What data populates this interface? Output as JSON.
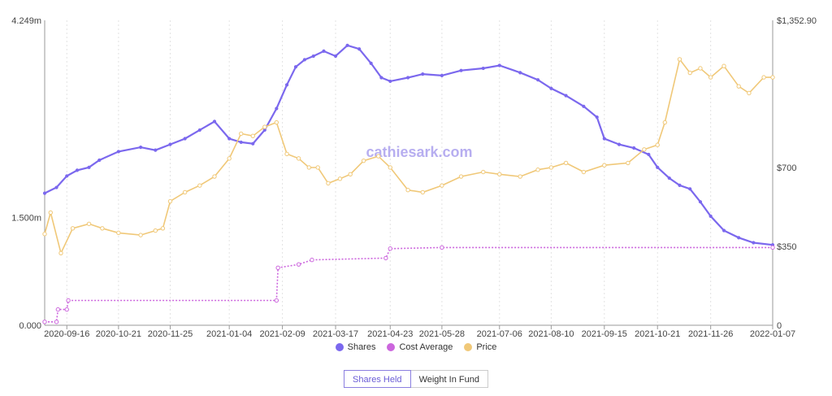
{
  "watermark": "cathiesark.com",
  "legend": [
    {
      "label": "Shares",
      "color": "#7b68ee"
    },
    {
      "label": "Cost Average",
      "color": "#cc66dd"
    },
    {
      "label": "Price",
      "color": "#f0c878"
    }
  ],
  "buttons": {
    "shares_held": "Shares Held",
    "weight_in_fund": "Weight In Fund"
  },
  "chart_data": {
    "type": "line",
    "x_tick_labels": [
      "2020-09-16",
      "2020-10-21",
      "2020-11-25",
      "2021-01-04",
      "2021-02-09",
      "2021-03-17",
      "2021-04-23",
      "2021-05-28",
      "2021-07-06",
      "2021-08-10",
      "2021-09-15",
      "2021-10-21",
      "2021-11-26",
      "2022-01-07"
    ],
    "y_left": {
      "ticks": [
        "0.000",
        "1.500m",
        "4.249m"
      ],
      "range": [
        0,
        4.249
      ],
      "unit": "millions of shares"
    },
    "y_right": {
      "ticks": [
        "0",
        "$350",
        "$700",
        "$1,352.90"
      ],
      "range": [
        0,
        1352.9
      ]
    },
    "grid": "dotted vertical",
    "legend_position": "bottom",
    "series": [
      {
        "name": "Shares",
        "axis": "left",
        "color": "#7b68ee",
        "x": [
          "2020-09-01",
          "2020-09-09",
          "2020-09-16",
          "2020-09-23",
          "2020-10-01",
          "2020-10-08",
          "2020-10-21",
          "2020-11-05",
          "2020-11-15",
          "2020-11-25",
          "2020-12-05",
          "2020-12-15",
          "2020-12-25",
          "2021-01-04",
          "2021-01-12",
          "2021-01-20",
          "2021-01-28",
          "2021-02-05",
          "2021-02-12",
          "2021-02-18",
          "2021-02-24",
          "2021-03-02",
          "2021-03-09",
          "2021-03-17",
          "2021-03-25",
          "2021-04-02",
          "2021-04-10",
          "2021-04-17",
          "2021-04-23",
          "2021-05-05",
          "2021-05-15",
          "2021-05-28",
          "2021-06-10",
          "2021-06-25",
          "2021-07-06",
          "2021-07-20",
          "2021-08-01",
          "2021-08-10",
          "2021-08-20",
          "2021-09-01",
          "2021-09-10",
          "2021-09-15",
          "2021-09-25",
          "2021-10-05",
          "2021-10-15",
          "2021-10-21",
          "2021-10-29",
          "2021-11-05",
          "2021-11-12",
          "2021-11-19",
          "2021-11-26",
          "2021-12-05",
          "2021-12-15",
          "2021-12-25",
          "2022-01-07"
        ],
        "y": [
          1.84,
          1.92,
          2.08,
          2.16,
          2.2,
          2.3,
          2.42,
          2.48,
          2.44,
          2.52,
          2.6,
          2.72,
          2.84,
          2.6,
          2.55,
          2.53,
          2.72,
          3.02,
          3.35,
          3.6,
          3.7,
          3.75,
          3.82,
          3.75,
          3.9,
          3.85,
          3.65,
          3.45,
          3.4,
          3.45,
          3.5,
          3.48,
          3.55,
          3.58,
          3.62,
          3.52,
          3.42,
          3.3,
          3.2,
          3.05,
          2.9,
          2.6,
          2.52,
          2.47,
          2.38,
          2.2,
          2.05,
          1.95,
          1.9,
          1.72,
          1.52,
          1.32,
          1.22,
          1.15,
          1.12
        ]
      },
      {
        "name": "Cost Average",
        "axis": "right",
        "color": "#cc66dd",
        "x": [
          "2020-09-01",
          "2020-09-09",
          "2020-09-10",
          "2020-09-16",
          "2020-09-17",
          "2021-02-05",
          "2021-02-06",
          "2021-02-20",
          "2021-03-01",
          "2021-04-20",
          "2021-04-23",
          "2021-05-28",
          "2022-01-07"
        ],
        "y": [
          15,
          15,
          70,
          70,
          110,
          110,
          255,
          270,
          290,
          298,
          340,
          345,
          345
        ]
      },
      {
        "name": "Price",
        "axis": "right",
        "color": "#f0c878",
        "x": [
          "2020-09-01",
          "2020-09-05",
          "2020-09-12",
          "2020-09-20",
          "2020-10-01",
          "2020-10-10",
          "2020-10-21",
          "2020-11-05",
          "2020-11-15",
          "2020-11-20",
          "2020-11-25",
          "2020-12-05",
          "2020-12-15",
          "2020-12-25",
          "2021-01-04",
          "2021-01-12",
          "2021-01-20",
          "2021-01-28",
          "2021-02-05",
          "2021-02-12",
          "2021-02-20",
          "2021-02-27",
          "2021-03-05",
          "2021-03-12",
          "2021-03-20",
          "2021-03-27",
          "2021-04-05",
          "2021-04-15",
          "2021-04-23",
          "2021-05-05",
          "2021-05-15",
          "2021-05-28",
          "2021-06-10",
          "2021-06-25",
          "2021-07-06",
          "2021-07-20",
          "2021-08-01",
          "2021-08-10",
          "2021-08-20",
          "2021-09-01",
          "2021-09-15",
          "2021-10-01",
          "2021-10-12",
          "2021-10-21",
          "2021-10-26",
          "2021-11-05",
          "2021-11-12",
          "2021-11-19",
          "2021-11-26",
          "2021-12-05",
          "2021-12-15",
          "2021-12-22",
          "2022-01-01",
          "2022-01-07"
        ],
        "y": [
          405,
          500,
          320,
          430,
          450,
          430,
          410,
          400,
          420,
          430,
          550,
          590,
          620,
          660,
          740,
          850,
          840,
          880,
          900,
          760,
          740,
          700,
          700,
          630,
          650,
          670,
          730,
          750,
          700,
          600,
          590,
          620,
          660,
          680,
          670,
          660,
          690,
          700,
          720,
          680,
          710,
          720,
          780,
          800,
          900,
          1180,
          1120,
          1140,
          1100,
          1150,
          1060,
          1030,
          1100,
          1100
        ]
      }
    ]
  }
}
